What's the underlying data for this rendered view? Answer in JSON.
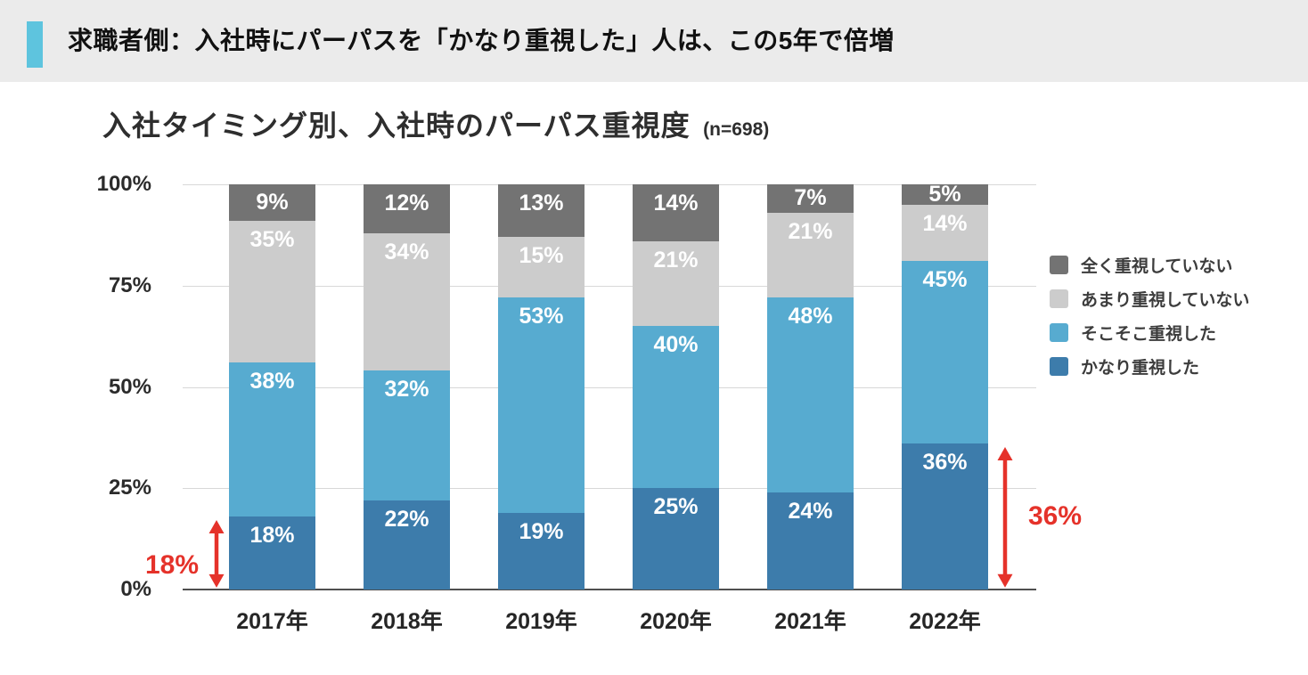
{
  "header": {
    "text": "求職者側：入社時にパーパスを「かなり重視した」人は、この5年で倍増",
    "accent_color": "#5ec4de",
    "band_color": "#ebebeb"
  },
  "chart_data": {
    "type": "bar",
    "stacked": true,
    "title": "入社タイミング別、入社時のパーパス重視度",
    "subtitle": "(n=698)",
    "categories": [
      "2017年",
      "2018年",
      "2019年",
      "2020年",
      "2021年",
      "2022年"
    ],
    "series": [
      {
        "name": "かなり重視した",
        "color": "#3d7cab",
        "values": [
          18,
          22,
          19,
          25,
          24,
          36
        ]
      },
      {
        "name": "そこそこ重視した",
        "color": "#57abd0",
        "values": [
          38,
          32,
          53,
          40,
          48,
          45
        ]
      },
      {
        "name": "あまり重視していない",
        "color": "#cccccc",
        "values": [
          35,
          34,
          15,
          21,
          21,
          14
        ]
      },
      {
        "name": "全く重視していない",
        "color": "#737373",
        "values": [
          9,
          12,
          13,
          14,
          7,
          5
        ]
      }
    ],
    "unit": "%",
    "ylim": [
      0,
      100
    ],
    "y_ticks": [
      100,
      75,
      50,
      25,
      0
    ],
    "y_tick_labels": [
      "100%",
      "75%",
      "50%",
      "25%",
      "0%"
    ],
    "grid": true,
    "legend_position": "right",
    "legend_order_top_to_bottom": [
      "全く重視していない",
      "あまり重視していない",
      "そこそこ重視した",
      "かなり重視した"
    ],
    "annotations": [
      {
        "text": "18%",
        "span_pct": 18,
        "side": "left",
        "category": "2017年",
        "color": "#e5322a"
      },
      {
        "text": "36%",
        "span_pct": 36,
        "side": "right",
        "category": "2022年",
        "color": "#e5322a"
      }
    ],
    "colors": {
      "gridline": "#d8d8d8",
      "axis": "#4f4f4f",
      "bar_label_text": "#ffffff",
      "annotation_red": "#e5322a"
    }
  }
}
